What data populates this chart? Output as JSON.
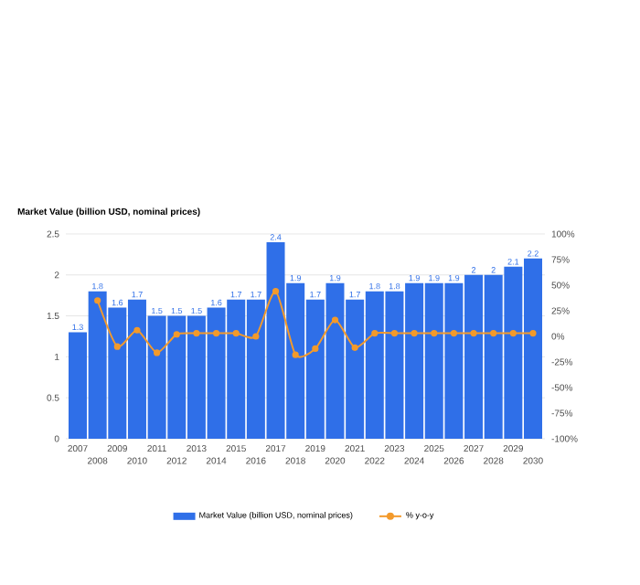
{
  "chart_data": {
    "type": "bar",
    "title": "Market Value (billion USD, nominal prices)",
    "categories": [
      "2007",
      "2008",
      "2009",
      "2010",
      "2011",
      "2012",
      "2013",
      "2014",
      "2015",
      "2016",
      "2017",
      "2018",
      "2019",
      "2020",
      "2021",
      "2022",
      "2023",
      "2024",
      "2025",
      "2026",
      "2027",
      "2028",
      "2029",
      "2030"
    ],
    "series": [
      {
        "name": "Market Value (billion USD, nominal prices)",
        "color": "#2f6fe8",
        "values": [
          1.3,
          1.8,
          1.6,
          1.7,
          1.5,
          1.5,
          1.5,
          1.6,
          1.7,
          1.7,
          2.4,
          1.9,
          1.7,
          1.9,
          1.7,
          1.8,
          1.8,
          1.9,
          1.9,
          1.9,
          2,
          2,
          2.1,
          2.2
        ],
        "value_labels": [
          "1.3",
          "1.8",
          "1.6",
          "1.7",
          "1.5",
          "1.5",
          "1.5",
          "1.6",
          "1.7",
          "1.7",
          "2.4",
          "1.9",
          "1.7",
          "1.9",
          "1.7",
          "1.8",
          "1.8",
          "1.9",
          "1.9",
          "1.9",
          "2",
          "2",
          "2.1",
          "2.2"
        ]
      },
      {
        "name": "% y-o-y",
        "type": "line",
        "axis": "y2",
        "color": "#f39a2b",
        "values": [
          null,
          35,
          -10,
          6,
          -16,
          2,
          3,
          3,
          3,
          0,
          44,
          -18,
          -12,
          16,
          -11,
          3,
          3,
          3,
          3,
          3,
          3,
          3,
          3,
          3
        ]
      }
    ],
    "ylim": [
      0,
      2.5
    ],
    "yticks": [
      0,
      0.5,
      1,
      1.5,
      2,
      2.5
    ],
    "y2lim": [
      -100,
      100
    ],
    "y2ticks": [
      {
        "value": -100,
        "label": "-100%"
      },
      {
        "value": -75,
        "label": "-75%"
      },
      {
        "value": -50,
        "label": "-50%"
      },
      {
        "value": -25,
        "label": "-25%"
      },
      {
        "value": 0,
        "label": "0%"
      },
      {
        "value": 25,
        "label": "25%"
      },
      {
        "value": 50,
        "label": "50%"
      },
      {
        "value": 75,
        "label": "75%"
      },
      {
        "value": 100,
        "label": "100%"
      }
    ],
    "grid": "y",
    "legend": "bottom",
    "marker": "circle"
  }
}
